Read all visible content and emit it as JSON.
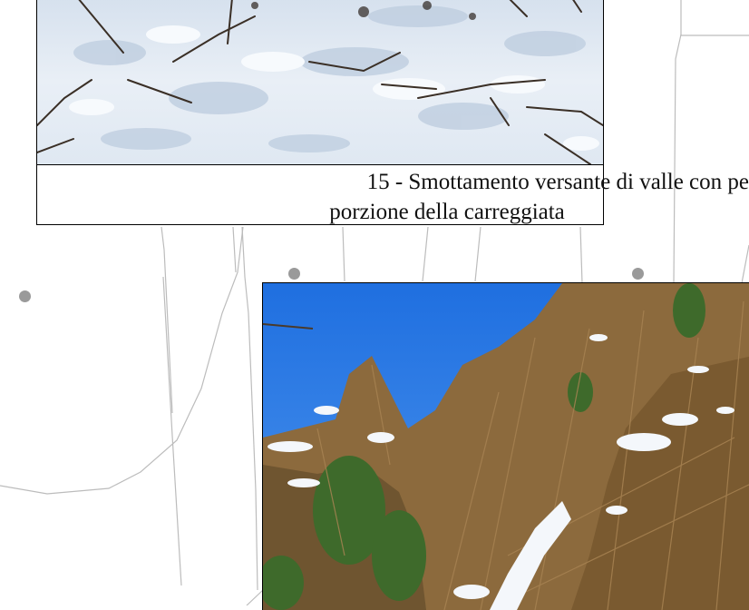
{
  "caption": {
    "line1": "15 - Smottamento versante di valle con pe",
    "line2": "porzione della carreggiata"
  },
  "colors": {
    "map_line": "#b8b8b8",
    "dot": "#9a9a9a",
    "frame": "#000000",
    "snow": "#e4ecf4",
    "sky": "#2f7fe6",
    "vegetation": "#8a6a3c",
    "ivy": "#3f6a2a"
  },
  "icons": {
    "map_marker": "map-point-icon"
  }
}
